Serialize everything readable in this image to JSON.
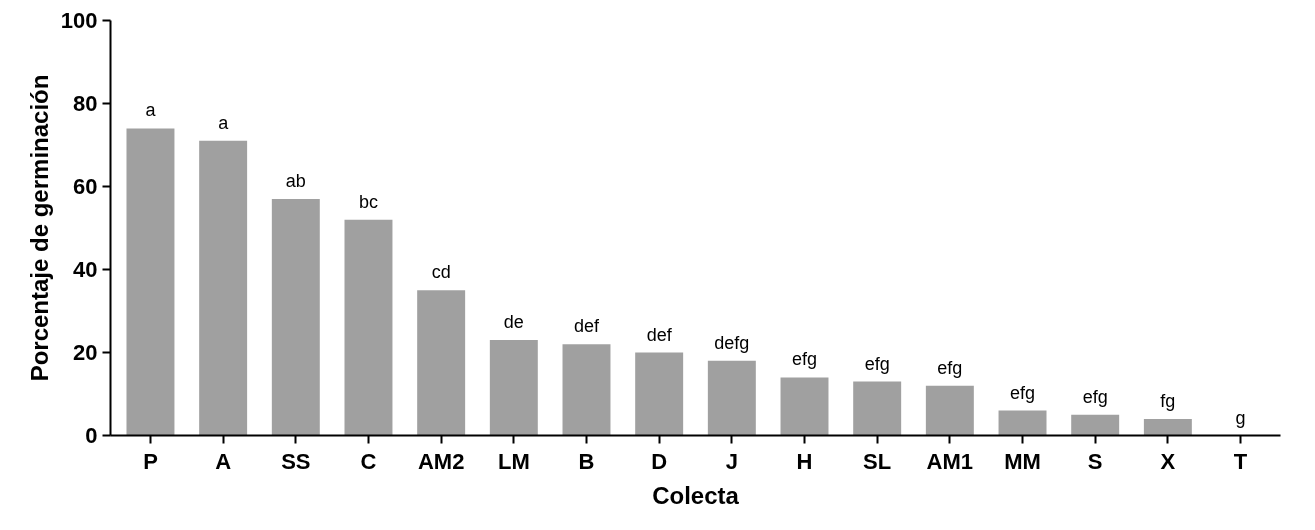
{
  "chart_data": {
    "type": "bar",
    "xlabel": "Colecta",
    "ylabel": "Porcentaje de germinación",
    "categories": [
      "P",
      "A",
      "SS",
      "C",
      "AM2",
      "LM",
      "B",
      "D",
      "J",
      "H",
      "SL",
      "AM1",
      "MM",
      "S",
      "X",
      "T"
    ],
    "values": [
      74,
      71,
      57,
      52,
      35,
      23,
      22,
      20,
      18,
      14,
      13,
      12,
      6,
      5,
      4,
      0
    ],
    "color": "#a0a0a0",
    "ylim": [
      0,
      100
    ],
    "yticks": [
      0,
      20,
      40,
      60,
      80,
      100
    ],
    "grid": false,
    "annotations": [
      {
        "text": "a",
        "x": "P",
        "y": 74
      },
      {
        "text": "a",
        "x": "A",
        "y": 71
      },
      {
        "text": "ab",
        "x": "SS",
        "y": 57
      },
      {
        "text": "bc",
        "x": "C",
        "y": 52
      },
      {
        "text": "cd",
        "x": "AM2",
        "y": 35
      },
      {
        "text": "de",
        "x": "LM",
        "y": 23
      },
      {
        "text": "def",
        "x": "B",
        "y": 22
      },
      {
        "text": "def",
        "x": "D",
        "y": 20
      },
      {
        "text": "defg",
        "x": "J",
        "y": 18
      },
      {
        "text": "efg",
        "x": "H",
        "y": 14
      },
      {
        "text": "efg",
        "x": "SL",
        "y": 13
      },
      {
        "text": "efg",
        "x": "AM1",
        "y": 12
      },
      {
        "text": "efg",
        "x": "MM",
        "y": 6
      },
      {
        "text": "efg",
        "x": "S",
        "y": 5
      },
      {
        "text": "fg",
        "x": "X",
        "y": 4
      },
      {
        "text": "g",
        "x": "T",
        "y": 0
      }
    ]
  }
}
